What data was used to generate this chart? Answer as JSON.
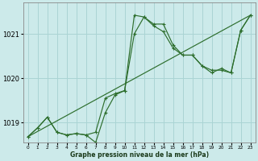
{
  "bg_color": "#cceaea",
  "grid_color": "#aad4d4",
  "line_color": "#2d6e2d",
  "xlabel": "Graphe pression niveau de la mer (hPa)",
  "ylim": [
    1018.55,
    1021.7
  ],
  "xlim": [
    -0.5,
    23.5
  ],
  "yticks": [
    1019,
    1020,
    1021
  ],
  "xticks": [
    0,
    1,
    2,
    3,
    4,
    5,
    6,
    7,
    8,
    9,
    10,
    11,
    12,
    13,
    14,
    15,
    16,
    17,
    18,
    19,
    20,
    21,
    22,
    23
  ],
  "series1": [
    1018.68,
    1018.88,
    1019.12,
    1018.78,
    1018.72,
    1018.75,
    1018.72,
    1018.55,
    1019.22,
    1019.62,
    1019.72,
    1021.42,
    1021.38,
    1021.18,
    1021.05,
    1020.68,
    1020.52,
    1020.52,
    1020.28,
    1020.18,
    1020.18,
    1020.12,
    1021.08,
    1021.42
  ],
  "series2": [
    1018.68,
    1018.88,
    1019.12,
    1018.78,
    1018.72,
    1018.75,
    1018.72,
    1018.78,
    1019.55,
    1019.65,
    1019.72,
    1021.0,
    1021.38,
    1021.22,
    1021.22,
    1020.75,
    1020.52,
    1020.52,
    1020.28,
    1020.12,
    1020.22,
    1020.12,
    1021.08,
    1021.42
  ],
  "series3_x": [
    0,
    23
  ],
  "series3_y": [
    1018.68,
    1021.42
  ]
}
